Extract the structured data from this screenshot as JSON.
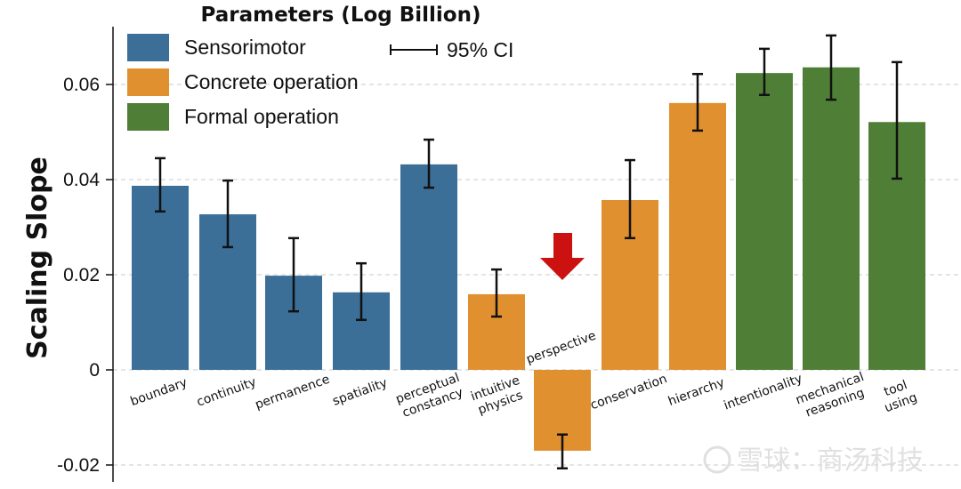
{
  "chart_data": {
    "type": "bar",
    "ylabel": "Scaling Slope",
    "ylim": [
      -0.022,
      0.072
    ],
    "yticks": [
      -0.02,
      0,
      0.02,
      0.04,
      0.06
    ],
    "ytick_labels": [
      "-0.02",
      "0",
      "0.02",
      "0.04",
      "0.06"
    ],
    "grid": "dashed horizontal",
    "legend": {
      "title": "Parameters (Log Billion)",
      "placement": "top-left",
      "entries": [
        {
          "label": "Sensorimotor",
          "color": "#3b6f98"
        },
        {
          "label": "Concrete operation",
          "color": "#e0902f"
        },
        {
          "label": "Formal operation",
          "color": "#4f7f37"
        }
      ],
      "ci_label": "95% CI"
    },
    "categories": [
      "boundary",
      "continuity",
      "permanence",
      "spatiality",
      "perceptual constancy",
      "intuitive physics",
      "perspective",
      "conservation",
      "hierarchy",
      "intentionality",
      "mechanical reasoning",
      "tool using"
    ],
    "groups": [
      "Sensorimotor",
      "Sensorimotor",
      "Sensorimotor",
      "Sensorimotor",
      "Sensorimotor",
      "Concrete operation",
      "Concrete operation",
      "Concrete operation",
      "Concrete operation",
      "Formal operation",
      "Formal operation",
      "Formal operation"
    ],
    "values": [
      0.0387,
      0.0327,
      0.0198,
      0.0163,
      0.0432,
      0.0159,
      -0.017,
      0.0357,
      0.0561,
      0.0624,
      0.0636,
      0.0521
    ],
    "ci_low": [
      0.0333,
      0.0258,
      0.0123,
      0.0105,
      0.0383,
      0.0112,
      -0.0207,
      0.0277,
      0.0503,
      0.0578,
      0.0568,
      0.0402
    ],
    "ci_high": [
      0.0445,
      0.0398,
      0.0277,
      0.0224,
      0.0484,
      0.0211,
      -0.0136,
      0.0441,
      0.0622,
      0.0675,
      0.0703,
      0.0647
    ],
    "annotations": [
      {
        "type": "red-down-arrow",
        "target": "perspective"
      }
    ]
  },
  "watermark": "雪球：商汤科技"
}
